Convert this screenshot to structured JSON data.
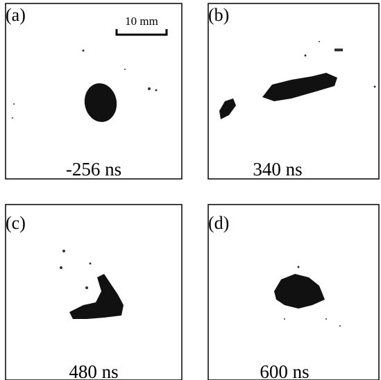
{
  "panels": [
    {
      "label": "(a)",
      "time": "-256 ns"
    },
    {
      "label": "(b)",
      "time": "340 ns"
    },
    {
      "label": "(c)",
      "time": "480 ns"
    },
    {
      "label": "(d)",
      "time": "600 ns"
    }
  ],
  "scale_bar": "10 mm"
}
